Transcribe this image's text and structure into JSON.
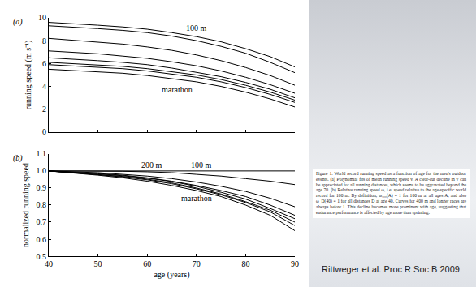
{
  "chart_data": [
    {
      "type": "line",
      "panel_label": "(a)",
      "ylabel": "running speed (m s⁻¹)",
      "x": [
        40,
        45,
        50,
        55,
        60,
        65,
        70,
        75,
        80,
        85,
        90
      ],
      "xlim": [
        40,
        90
      ],
      "xticks": [
        40,
        50,
        60,
        70,
        80,
        90
      ],
      "ylim": [
        0,
        10
      ],
      "yticks": [
        0,
        2,
        4,
        6,
        8,
        10
      ],
      "grid": false,
      "tick_labels": "y",
      "series": [
        {
          "color": "#000000",
          "line_style": "solid",
          "values": [
            9.6,
            9.5,
            9.35,
            9.2,
            9.0,
            8.7,
            8.35,
            7.9,
            7.3,
            6.6,
            5.7
          ]
        },
        {
          "color": "#000000",
          "line_style": "solid",
          "values": [
            9.3,
            9.2,
            9.05,
            8.9,
            8.7,
            8.4,
            8.0,
            7.5,
            6.9,
            6.1,
            5.2
          ]
        },
        {
          "color": "#000000",
          "line_style": "solid",
          "values": [
            8.2,
            8.05,
            7.9,
            7.7,
            7.45,
            7.15,
            6.75,
            6.25,
            5.65,
            4.95,
            4.1
          ]
        },
        {
          "color": "#000000",
          "line_style": "solid",
          "values": [
            7.1,
            7.0,
            6.85,
            6.65,
            6.45,
            6.15,
            5.8,
            5.35,
            4.8,
            4.15,
            3.4
          ]
        },
        {
          "color": "#000000",
          "line_style": "solid",
          "values": [
            6.5,
            6.4,
            6.25,
            6.1,
            5.9,
            5.6,
            5.25,
            4.85,
            4.35,
            3.75,
            3.0
          ]
        },
        {
          "color": "#000000",
          "line_style": "solid",
          "values": [
            6.1,
            6.0,
            5.9,
            5.75,
            5.55,
            5.3,
            5.0,
            4.6,
            4.1,
            3.5,
            2.8
          ]
        },
        {
          "color": "#000000",
          "line_style": "solid",
          "values": [
            5.9,
            5.8,
            5.7,
            5.55,
            5.35,
            5.1,
            4.8,
            4.4,
            3.9,
            3.3,
            2.6
          ]
        },
        {
          "color": "#000000",
          "line_style": "solid",
          "values": [
            5.5,
            5.4,
            5.3,
            5.15,
            4.95,
            4.7,
            4.4,
            4.0,
            3.5,
            2.9,
            2.2
          ]
        }
      ],
      "annotations": [
        {
          "text": "100 m",
          "x": 70,
          "y": 9.1
        },
        {
          "text": "marathon",
          "x": 66,
          "y": 3.7
        }
      ]
    },
    {
      "type": "line",
      "panel_label": "(b)",
      "xlabel": "age (years)",
      "ylabel": "normalized running speed",
      "x": [
        40,
        45,
        50,
        55,
        60,
        65,
        70,
        75,
        80,
        85,
        90
      ],
      "xlim": [
        40,
        90
      ],
      "xticks": [
        40,
        50,
        60,
        70,
        80,
        90
      ],
      "ylim": [
        0.5,
        1.1
      ],
      "yticks": [
        0.5,
        0.6,
        0.7,
        0.8,
        0.9,
        {
          "value": 1,
          "label": "1.0"
        },
        1.1
      ],
      "grid": false,
      "series": [
        {
          "color": "#000000",
          "line_style": "solid",
          "values": [
            1,
            1,
            1,
            1,
            1,
            1,
            1,
            1,
            1,
            1,
            1
          ]
        },
        {
          "color": "#000000",
          "line_style": "solid",
          "values": [
            1,
            1,
            1,
            0.998,
            0.995,
            0.99,
            0.98,
            0.97,
            0.955,
            0.94,
            0.92
          ]
        },
        {
          "color": "#000000",
          "line_style": "solid",
          "values": [
            1,
            0.995,
            0.99,
            0.98,
            0.97,
            0.955,
            0.935,
            0.91,
            0.88,
            0.84,
            0.79
          ]
        },
        {
          "color": "#000000",
          "line_style": "solid",
          "values": [
            1,
            0.993,
            0.985,
            0.975,
            0.96,
            0.94,
            0.915,
            0.885,
            0.85,
            0.8,
            0.74
          ]
        },
        {
          "color": "#000000",
          "line_style": "solid",
          "values": [
            1,
            0.992,
            0.983,
            0.972,
            0.958,
            0.938,
            0.91,
            0.875,
            0.835,
            0.78,
            0.72
          ]
        },
        {
          "color": "#000000",
          "line_style": "solid",
          "values": [
            1,
            0.99,
            0.98,
            0.968,
            0.952,
            0.93,
            0.9,
            0.865,
            0.82,
            0.77,
            0.7
          ]
        },
        {
          "color": "#000000",
          "line_style": "solid",
          "values": [
            1,
            0.99,
            0.978,
            0.965,
            0.948,
            0.925,
            0.895,
            0.86,
            0.815,
            0.76,
            0.68
          ]
        },
        {
          "color": "#000000",
          "line_style": "solid",
          "values": [
            1,
            0.988,
            0.975,
            0.96,
            0.94,
            0.915,
            0.885,
            0.85,
            0.8,
            0.74,
            0.65
          ]
        }
      ],
      "annotations": [
        {
          "text": "200 m",
          "x": 61,
          "y": 1.035
        },
        {
          "text": "100 m",
          "x": 71,
          "y": 1.035
        },
        {
          "text": "marathon",
          "x": 70,
          "y": 0.84
        }
      ]
    }
  ],
  "caption": "Figure 1. World record running speed as a function of age for the men's outdoor events. (a) Polynomial fits of mean running speed v. A clear-cut decline in v can be appreciated for all running distances, which seems to be aggravated beyond the age 70. (b) Relative running speed ω, i.e. speed relative to the age-specific world record for 100 m. By definition, ω₁₀₀(A) = 1 for 100 m at all ages A, and also ω_D(40) = 1 for all distances D at age 40. Curves for 400 m and longer races are always below 1. This decline becomes more prominent with age, suggesting that endurance performance is affected by age more than sprinting.",
  "citation": "Rittweger et al. Proc R Soc B 2009"
}
